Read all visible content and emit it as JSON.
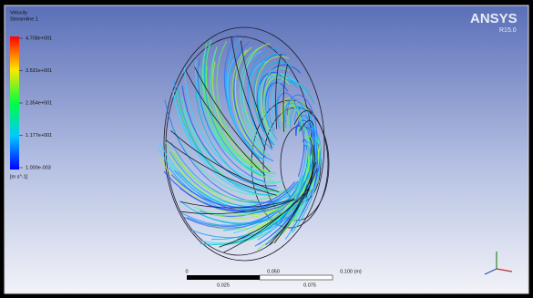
{
  "legend": {
    "title": "Velocity",
    "subtitle": "Streamline 1",
    "ticks": [
      "4.708e+001",
      "3.531e+001",
      "2.354e+001",
      "1.177e+001",
      "1.000e-003"
    ],
    "unit": "[m s^-1]"
  },
  "logo": {
    "name": "ANSYS",
    "version": "R15.0"
  },
  "scale_bar": {
    "top": [
      "0",
      "0.050",
      "0.100 (m)"
    ],
    "bottom": [
      "0.025",
      "0.075"
    ]
  }
}
